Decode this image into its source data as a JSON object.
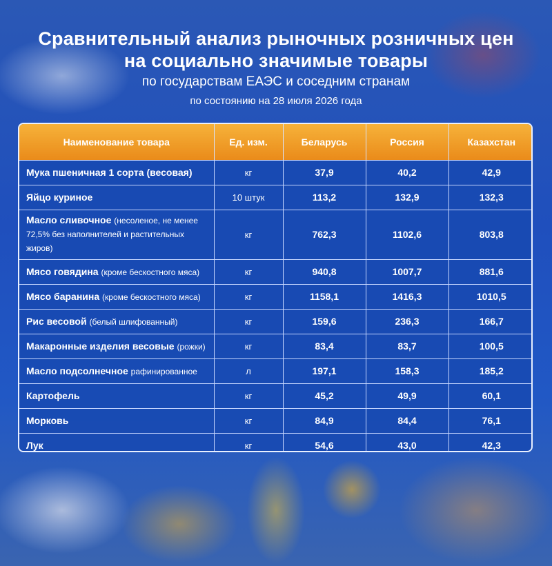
{
  "header": {
    "title_line1": "Сравнительный анализ рыночных розничных цен",
    "title_line2": "на социально значимые товары",
    "subtitle": "по государствам ЕАЭС и соседним странам",
    "date": "по состоянию на 28 июля 2026 года"
  },
  "table": {
    "columns": [
      "Наименование товара",
      "Ед. изм.",
      "Беларусь",
      "Россия",
      "Казахстан"
    ],
    "rows": [
      {
        "name": "Мука пшеничная 1 сорта (весовая)",
        "note": "",
        "unit": "кг",
        "by": "37,9",
        "ru": "40,2",
        "kz": "42,9"
      },
      {
        "name": "Яйцо куриное",
        "note": "",
        "unit": "10 штук",
        "by": "113,2",
        "ru": "132,9",
        "kz": "132,3"
      },
      {
        "name": "Масло сливочное",
        "note": "(несоленое, не менее 72,5% без наполнителей и растительных жиров)",
        "unit": "кг",
        "by": "762,3",
        "ru": "1102,6",
        "kz": "803,8"
      },
      {
        "name": "Мясо говядина",
        "note": "(кроме бескостного мяса)",
        "unit": "кг",
        "by": "940,8",
        "ru": "1007,7",
        "kz": "881,6"
      },
      {
        "name": "Мясо баранина",
        "note": "(кроме бескостного мяса)",
        "unit": "кг",
        "by": "1158,1",
        "ru": "1416,3",
        "kz": "1010,5"
      },
      {
        "name": "Рис весовой",
        "note": "(белый шлифованный)",
        "unit": "кг",
        "by": "159,6",
        "ru": "236,3",
        "kz": "166,7"
      },
      {
        "name": "Макаронные изделия весовые",
        "note": "(рожки)",
        "unit": "кг",
        "by": "83,4",
        "ru": "83,7",
        "kz": "100,5"
      },
      {
        "name": "Масло подсолнечное",
        "note": "рафинированное",
        "unit": "л",
        "by": "197,1",
        "ru": "158,3",
        "kz": "185,2"
      },
      {
        "name": "Картофель",
        "note": "",
        "unit": "кг",
        "by": "45,2",
        "ru": "49,9",
        "kz": "60,1"
      },
      {
        "name": "Морковь",
        "note": "",
        "unit": "кг",
        "by": "84,9",
        "ru": "84,4",
        "kz": "76,1"
      },
      {
        "name": "Лук",
        "note": "",
        "unit": "кг",
        "by": "54,6",
        "ru": "43,0",
        "kz": "42,3"
      }
    ]
  },
  "colors": {
    "background": "#1f4fbd",
    "header_row": "#ef9a24",
    "text": "#ffffff"
  }
}
